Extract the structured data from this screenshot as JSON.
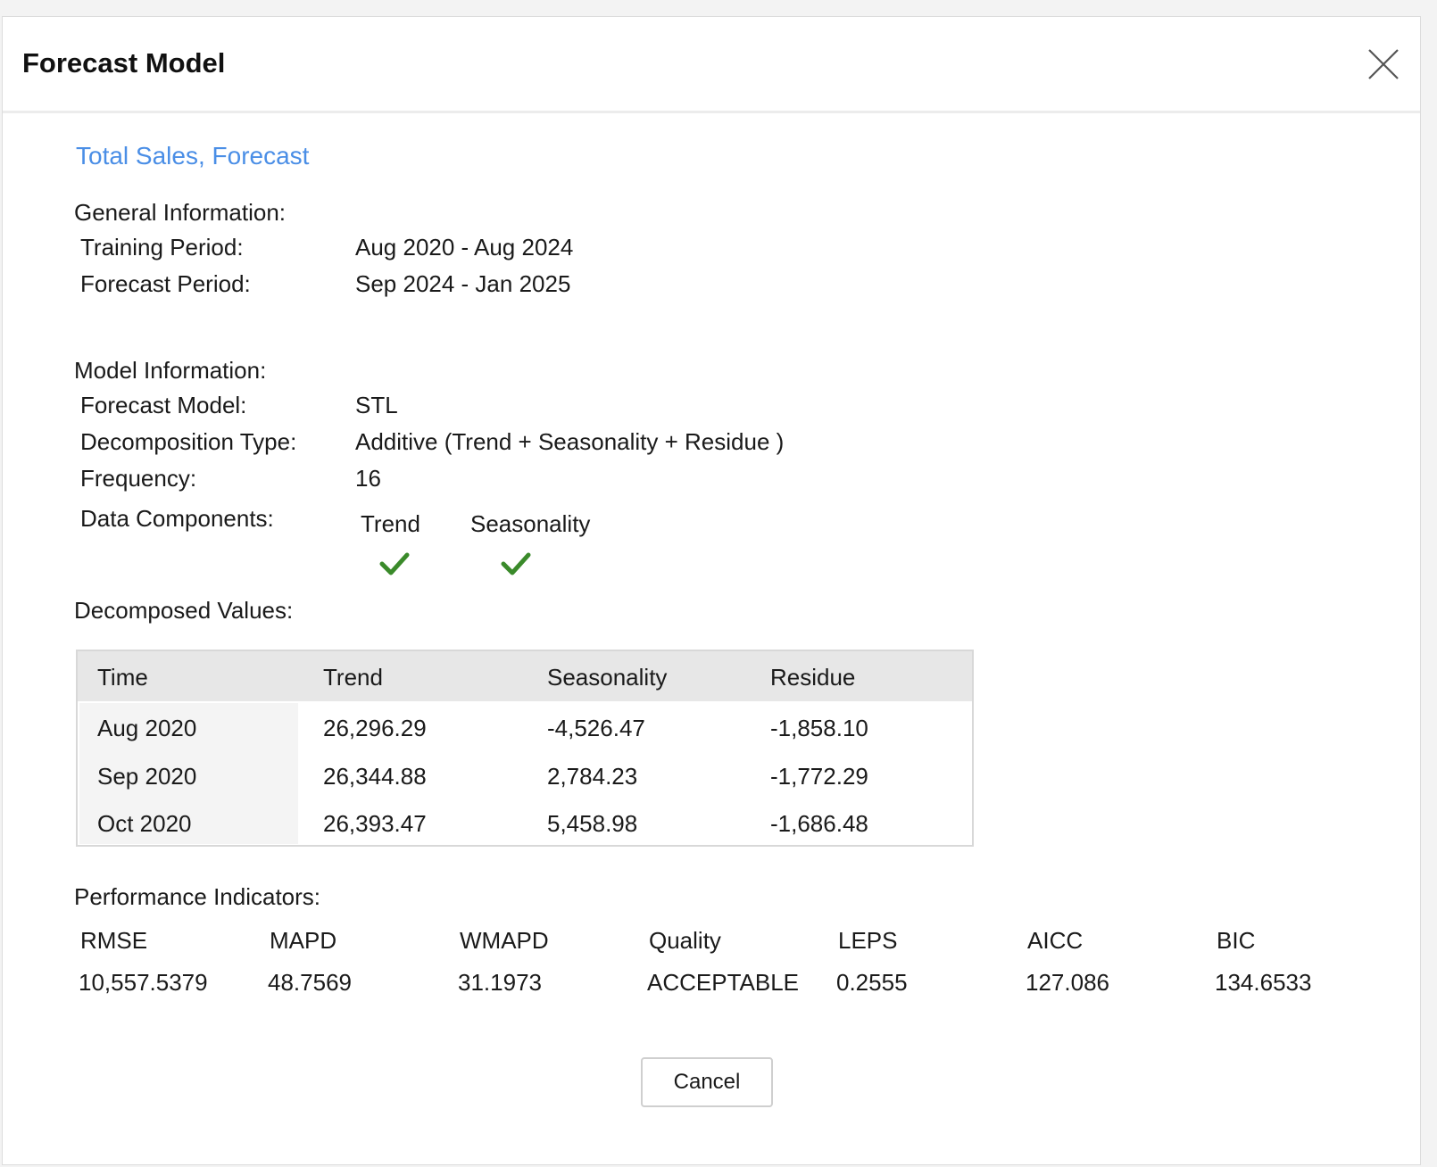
{
  "dialog": {
    "title": "Forecast Model",
    "close_icon": "close-x-icon",
    "subtitle": "Total Sales, Forecast"
  },
  "general": {
    "heading": "General Information:",
    "rows": [
      {
        "label": "Training Period:",
        "value": "Aug 2020 - Aug 2024"
      },
      {
        "label": "Forecast Period:",
        "value": "Sep 2024 - Jan 2025"
      }
    ]
  },
  "model": {
    "heading": "Model Information:",
    "rows": [
      {
        "label": "Forecast Model:",
        "value": "STL"
      },
      {
        "label": "Decomposition Type:",
        "value": "Additive (Trend + Seasonality + Residue )"
      },
      {
        "label": "Frequency:",
        "value": "16"
      }
    ],
    "components_label": "Data Components:",
    "components": [
      {
        "name": "Trend",
        "checked": true,
        "icon": "check-icon"
      },
      {
        "name": "Seasonality",
        "checked": true,
        "icon": "check-icon"
      }
    ],
    "check_color": "#3a8a2a"
  },
  "decomposed": {
    "heading": "Decomposed Values:",
    "columns": [
      "Time",
      "Trend",
      "Seasonality",
      "Residue"
    ],
    "rows": [
      [
        "Aug 2020",
        "26,296.29",
        "-4,526.47",
        "-1,858.10"
      ],
      [
        "Sep 2020",
        "26,344.88",
        "2,784.23",
        "-1,772.29"
      ],
      [
        "Oct 2020",
        "26,393.47",
        "5,458.98",
        "-1,686.48"
      ]
    ]
  },
  "performance": {
    "heading": "Performance Indicators:",
    "metrics": [
      {
        "name": "RMSE",
        "value": "10,557.5379"
      },
      {
        "name": "MAPD",
        "value": "48.7569"
      },
      {
        "name": "WMAPD",
        "value": "31.1973"
      },
      {
        "name": "Quality",
        "value": "ACCEPTABLE"
      },
      {
        "name": "LEPS",
        "value": "0.2555"
      },
      {
        "name": "AICC",
        "value": "127.086"
      },
      {
        "name": "BIC",
        "value": "134.6533"
      }
    ]
  },
  "footer": {
    "cancel_label": "Cancel"
  },
  "colors": {
    "link": "#4a8ee6",
    "header_bg": "#e7e7e7"
  }
}
